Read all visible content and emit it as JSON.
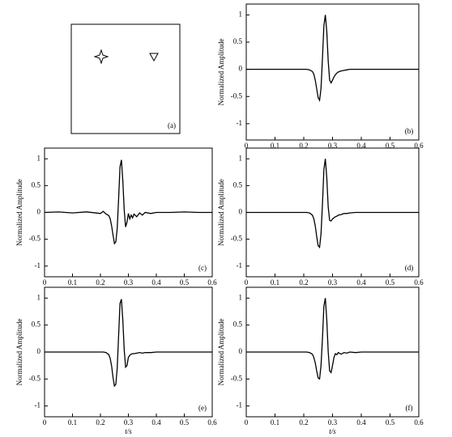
{
  "panel_a": {
    "label": "(a)"
  },
  "chart_data": [
    {
      "type": "line",
      "panel_label": "(b)",
      "ylabel": "Normalized Amplitude",
      "x": [
        0,
        0.05,
        0.1,
        0.15,
        0.2,
        0.21,
        0.22,
        0.23,
        0.235,
        0.24,
        0.245,
        0.25,
        0.255,
        0.26,
        0.265,
        0.27,
        0.275,
        0.28,
        0.285,
        0.29,
        0.295,
        0.3,
        0.305,
        0.31,
        0.315,
        0.32,
        0.33,
        0.34,
        0.35,
        0.36,
        0.38,
        0.4,
        0.45,
        0.5,
        0.55,
        0.6
      ],
      "values": [
        0,
        0,
        0,
        0,
        0,
        0,
        -0.01,
        -0.04,
        -0.09,
        -0.2,
        -0.36,
        -0.52,
        -0.57,
        -0.35,
        0.2,
        0.8,
        1,
        0.7,
        0.15,
        -0.2,
        -0.25,
        -0.2,
        -0.14,
        -0.1,
        -0.07,
        -0.05,
        -0.03,
        -0.02,
        -0.01,
        0,
        0,
        0,
        0,
        0,
        0,
        0
      ],
      "color": "#000000",
      "xlim": [
        0,
        0.6
      ],
      "ylim": [
        -1.3,
        1.2
      ],
      "xticks": [
        0,
        0.1,
        0.2,
        0.3,
        0.4,
        0.5,
        0.6
      ],
      "yticks": [
        -1,
        -0.5,
        0,
        0.5,
        1
      ]
    },
    {
      "type": "line",
      "panel_label": "(c)",
      "ylabel": "Normalized Amplitude",
      "x": [
        0,
        0.05,
        0.1,
        0.15,
        0.2,
        0.21,
        0.22,
        0.23,
        0.235,
        0.24,
        0.245,
        0.25,
        0.255,
        0.26,
        0.265,
        0.27,
        0.275,
        0.28,
        0.285,
        0.29,
        0.295,
        0.3,
        0.305,
        0.31,
        0.315,
        0.32,
        0.33,
        0.34,
        0.35,
        0.36,
        0.38,
        0.4,
        0.45,
        0.5,
        0.55,
        0.6
      ],
      "values": [
        0,
        0.01,
        -0.01,
        0.01,
        -0.02,
        0.02,
        -0.03,
        -0.06,
        -0.12,
        -0.25,
        -0.42,
        -0.58,
        -0.55,
        -0.3,
        0.25,
        0.85,
        0.98,
        0.6,
        0.05,
        -0.27,
        -0.18,
        -0.02,
        -0.12,
        -0.05,
        -0.1,
        -0.03,
        -0.08,
        -0.01,
        -0.05,
        0,
        -0.02,
        0,
        0,
        0.01,
        0,
        0
      ],
      "color": "#000000",
      "xlim": [
        0,
        0.6
      ],
      "ylim": [
        -1.2,
        1.2
      ],
      "xticks": [
        0,
        0.1,
        0.2,
        0.3,
        0.4,
        0.5,
        0.6
      ],
      "yticks": [
        -1,
        -0.5,
        0,
        0.5,
        1
      ]
    },
    {
      "type": "line",
      "panel_label": "(d)",
      "ylabel": "Normalized Amplitude",
      "x": [
        0,
        0.05,
        0.1,
        0.15,
        0.2,
        0.21,
        0.22,
        0.23,
        0.235,
        0.24,
        0.245,
        0.25,
        0.255,
        0.26,
        0.265,
        0.27,
        0.275,
        0.28,
        0.285,
        0.29,
        0.295,
        0.3,
        0.305,
        0.31,
        0.315,
        0.32,
        0.33,
        0.34,
        0.35,
        0.36,
        0.38,
        0.4,
        0.45,
        0.5,
        0.55,
        0.6
      ],
      "values": [
        0,
        0,
        0,
        0,
        0,
        0,
        -0.01,
        -0.05,
        -0.12,
        -0.25,
        -0.45,
        -0.62,
        -0.65,
        -0.4,
        0.15,
        0.8,
        1,
        0.65,
        0.1,
        -0.15,
        -0.16,
        -0.12,
        -0.1,
        -0.08,
        -0.07,
        -0.05,
        -0.04,
        -0.02,
        -0.02,
        -0.01,
        0,
        0,
        0,
        0,
        0,
        0
      ],
      "color": "#000000",
      "xlim": [
        0,
        0.6
      ],
      "ylim": [
        -1.2,
        1.2
      ],
      "xticks": [
        0,
        0.1,
        0.2,
        0.3,
        0.4,
        0.5,
        0.6
      ],
      "yticks": [
        -1,
        -0.5,
        0,
        0.5,
        1
      ]
    },
    {
      "type": "line",
      "panel_label": "(e)",
      "ylabel": "Normalized Amplitude",
      "xlabel": "t/s",
      "x": [
        0,
        0.05,
        0.1,
        0.15,
        0.2,
        0.21,
        0.22,
        0.23,
        0.235,
        0.24,
        0.245,
        0.25,
        0.255,
        0.26,
        0.265,
        0.27,
        0.275,
        0.28,
        0.285,
        0.29,
        0.295,
        0.3,
        0.305,
        0.31,
        0.315,
        0.32,
        0.33,
        0.34,
        0.35,
        0.36,
        0.38,
        0.4,
        0.45,
        0.5,
        0.55,
        0.6
      ],
      "values": [
        0,
        0,
        0,
        0,
        0,
        0,
        -0.01,
        -0.05,
        -0.12,
        -0.26,
        -0.47,
        -0.63,
        -0.6,
        -0.3,
        0.3,
        0.9,
        0.98,
        0.6,
        0.05,
        -0.28,
        -0.25,
        -0.1,
        -0.06,
        -0.04,
        -0.03,
        -0.03,
        -0.02,
        -0.01,
        -0.02,
        -0.01,
        -0.01,
        0,
        0,
        0,
        0,
        0
      ],
      "color": "#000000",
      "xlim": [
        0,
        0.6
      ],
      "ylim": [
        -1.2,
        1.2
      ],
      "xticks": [
        0,
        0.1,
        0.2,
        0.3,
        0.4,
        0.5,
        0.6
      ],
      "yticks": [
        -1,
        -0.5,
        0,
        0.5,
        1
      ]
    },
    {
      "type": "line",
      "panel_label": "(f)",
      "ylabel": "Normalized Amplitude",
      "xlabel": "t/s",
      "x": [
        0,
        0.05,
        0.1,
        0.15,
        0.2,
        0.21,
        0.22,
        0.23,
        0.235,
        0.24,
        0.245,
        0.25,
        0.255,
        0.26,
        0.265,
        0.27,
        0.275,
        0.28,
        0.285,
        0.29,
        0.295,
        0.3,
        0.305,
        0.31,
        0.315,
        0.32,
        0.33,
        0.34,
        0.35,
        0.36,
        0.38,
        0.4,
        0.45,
        0.5,
        0.55,
        0.6
      ],
      "values": [
        0,
        0,
        0,
        0,
        0,
        0,
        -0.01,
        -0.04,
        -0.1,
        -0.2,
        -0.35,
        -0.48,
        -0.5,
        -0.25,
        0.25,
        0.85,
        1,
        0.6,
        0,
        -0.35,
        -0.38,
        -0.25,
        -0.1,
        -0.03,
        -0.05,
        -0.01,
        -0.04,
        -0.01,
        -0.02,
        0,
        -0.01,
        0,
        0,
        0,
        0,
        0
      ],
      "color": "#000000",
      "xlim": [
        0,
        0.6
      ],
      "ylim": [
        -1.2,
        1.2
      ],
      "xticks": [
        0,
        0.1,
        0.2,
        0.3,
        0.4,
        0.5,
        0.6
      ],
      "yticks": [
        -1,
        -0.5,
        0,
        0.5,
        1
      ]
    }
  ]
}
